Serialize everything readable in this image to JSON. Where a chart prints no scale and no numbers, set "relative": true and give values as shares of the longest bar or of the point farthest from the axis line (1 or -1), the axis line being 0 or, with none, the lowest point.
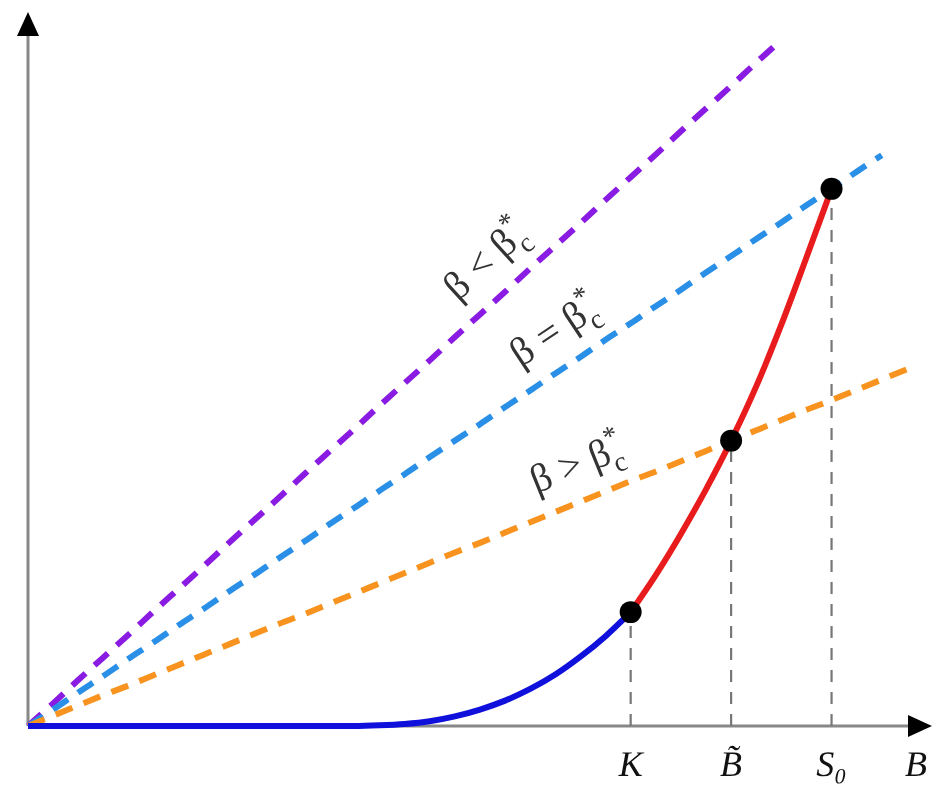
{
  "chart_data": {
    "type": "line",
    "relative": true,
    "xlabel": "B",
    "categories": [
      null,
      null,
      null,
      null,
      null,
      null,
      null,
      null,
      null,
      null,
      null,
      null,
      null,
      null,
      null,
      null,
      null,
      null,
      null,
      null,
      null,
      null,
      null,
      null,
      "K",
      null,
      null,
      null,
      "B̃",
      null,
      null,
      null,
      "S₀",
      null,
      null,
      null,
      null
    ],
    "series": [
      {
        "name": "β < β$^{*}$$_{c}$",
        "color": "#8a1be2",
        "line_style": "dashed",
        "values": [
          0,
          0.033,
          0.067,
          0.1,
          0.133,
          0.167,
          0.2,
          0.233,
          0.267,
          0.3,
          0.333,
          0.367,
          0.4,
          0.433,
          0.467,
          0.5,
          0.533,
          0.567,
          0.6,
          0.633,
          0.667,
          0.7,
          0.733,
          0.767,
          0.8,
          0.833,
          0.867,
          0.9,
          0.933,
          0.967,
          1,
          null,
          null,
          null,
          null,
          null,
          null
        ]
      },
      {
        "name": "β = β$^{*}$$_{c}$",
        "color": "#2a8fe6",
        "line_style": "dashed",
        "values": [
          0,
          0.024,
          0.049,
          0.073,
          0.098,
          0.122,
          0.147,
          0.171,
          0.196,
          0.22,
          0.245,
          0.269,
          0.294,
          0.318,
          0.343,
          0.367,
          0.392,
          0.416,
          0.44,
          0.465,
          0.489,
          0.514,
          0.538,
          0.563,
          0.587,
          0.612,
          0.636,
          0.661,
          0.685,
          0.71,
          0.734,
          0.759,
          0.783,
          0.808,
          0.832,
          null,
          null
        ]
      },
      {
        "name": "β > β$^{*}$$_{c}$",
        "color": "#f7931e",
        "line_style": "dashed",
        "values": [
          0,
          0.015,
          0.03,
          0.045,
          0.059,
          0.074,
          0.089,
          0.104,
          0.119,
          0.134,
          0.149,
          0.163,
          0.178,
          0.193,
          0.208,
          0.223,
          0.238,
          0.253,
          0.267,
          0.282,
          0.297,
          0.312,
          0.327,
          0.342,
          0.357,
          0.371,
          0.386,
          0.401,
          0.416,
          0.431,
          0.446,
          0.461,
          0.475,
          0.49,
          0.505,
          0.52,
          null
        ]
      },
      {
        "color": "#1010dd",
        "line_style": "solid",
        "values": [
          0,
          0,
          0,
          0,
          0,
          0,
          0,
          0,
          0,
          0,
          0,
          0,
          0,
          0,
          0.001,
          0.003,
          0.007,
          0.014,
          0.024,
          0.037,
          0.054,
          0.075,
          0.101,
          0.131,
          0.166,
          null,
          null,
          null,
          null,
          null,
          null,
          null,
          null,
          null,
          null,
          null,
          null
        ]
      },
      {
        "color": "#e81c1c",
        "line_style": "solid",
        "values": [
          null,
          null,
          null,
          null,
          null,
          null,
          null,
          null,
          null,
          null,
          null,
          null,
          null,
          null,
          null,
          null,
          null,
          null,
          null,
          null,
          null,
          null,
          null,
          null,
          0.166,
          0.22,
          0.28,
          0.345,
          0.416,
          0.495,
          0.585,
          0.683,
          0.783,
          null,
          null,
          null,
          null
        ]
      },
      {
        "type": "lollipop",
        "color": "#000000",
        "marker": "circle",
        "line_style": "dashed",
        "values": [
          null,
          null,
          null,
          null,
          null,
          null,
          null,
          null,
          null,
          null,
          null,
          null,
          null,
          null,
          null,
          null,
          null,
          null,
          null,
          null,
          null,
          null,
          null,
          null,
          0.166,
          null,
          null,
          null,
          0.416,
          null,
          null,
          null,
          0.783,
          null,
          null,
          null,
          null
        ]
      }
    ]
  }
}
